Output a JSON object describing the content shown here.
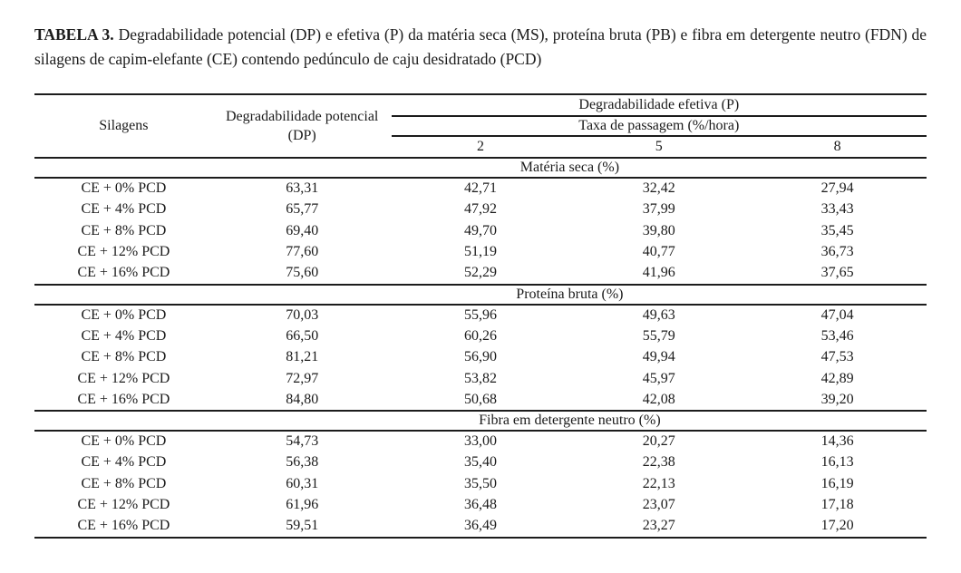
{
  "page": {
    "background_color": "#ffffff",
    "text_color": "#1b1b1b",
    "rule_color": "#1c1c1c"
  },
  "caption": {
    "label": "TABELA 3.",
    "text": "Degradabilidade potencial (DP) e efetiva (P) da matéria seca (MS), proteína bruta (PB) e fibra em detergente neutro (FDN) de silagens de capim-elefante (CE) contendo pedúnculo de caju desidratado (PCD)"
  },
  "table": {
    "header": {
      "silagens": "Silagens",
      "potential": "Degradabilidade potencial (DP)",
      "effective": "Degradabilidade efetiva (P)",
      "passage_rate": "Taxa de passagem (%/hora)",
      "rates": [
        "2",
        "5",
        "8"
      ]
    },
    "sections": [
      {
        "title": "Matéria seca (%)",
        "rows": [
          [
            "CE + 0% PCD",
            "63,31",
            "42,71",
            "32,42",
            "27,94"
          ],
          [
            "CE + 4% PCD",
            "65,77",
            "47,92",
            "37,99",
            "33,43"
          ],
          [
            "CE + 8% PCD",
            "69,40",
            "49,70",
            "39,80",
            "35,45"
          ],
          [
            "CE + 12% PCD",
            "77,60",
            "51,19",
            "40,77",
            "36,73"
          ],
          [
            "CE + 16% PCD",
            "75,60",
            "52,29",
            "41,96",
            "37,65"
          ]
        ]
      },
      {
        "title": "Proteína bruta (%)",
        "rows": [
          [
            "CE + 0% PCD",
            "70,03",
            "55,96",
            "49,63",
            "47,04"
          ],
          [
            "CE + 4% PCD",
            "66,50",
            "60,26",
            "55,79",
            "53,46"
          ],
          [
            "CE + 8% PCD",
            "81,21",
            "56,90",
            "49,94",
            "47,53"
          ],
          [
            "CE + 12% PCD",
            "72,97",
            "53,82",
            "45,97",
            "42,89"
          ],
          [
            "CE + 16% PCD",
            "84,80",
            "50,68",
            "42,08",
            "39,20"
          ]
        ]
      },
      {
        "title": "Fibra em detergente neutro (%)",
        "rows": [
          [
            "CE + 0% PCD",
            "54,73",
            "33,00",
            "20,27",
            "14,36"
          ],
          [
            "CE + 4% PCD",
            "56,38",
            "35,40",
            "22,38",
            "16,13"
          ],
          [
            "CE + 8% PCD",
            "60,31",
            "35,50",
            "22,13",
            "16,19"
          ],
          [
            "CE + 12% PCD",
            "61,96",
            "36,48",
            "23,07",
            "17,18"
          ],
          [
            "CE + 16% PCD",
            "59,51",
            "36,49",
            "23,27",
            "17,20"
          ]
        ]
      }
    ]
  }
}
